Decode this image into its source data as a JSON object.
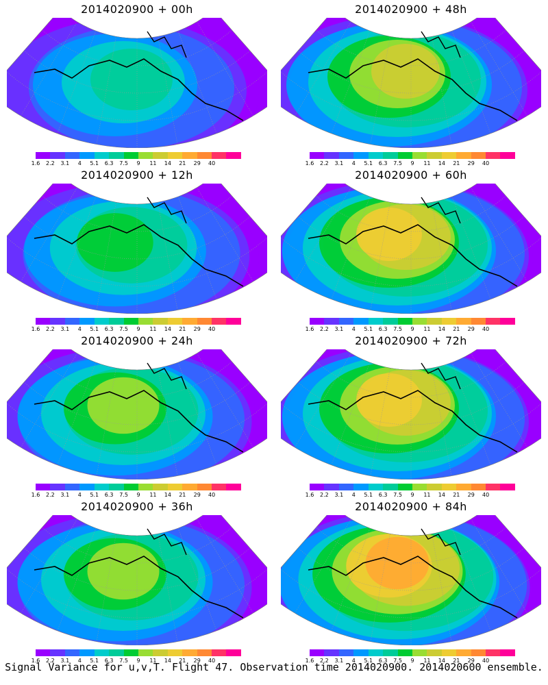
{
  "panels": [
    {
      "title": "2014020900 + 00h",
      "intensity": 0.15
    },
    {
      "title": "2014020900 + 48h",
      "intensity": 0.55
    },
    {
      "title": "2014020900 + 12h",
      "intensity": 0.3
    },
    {
      "title": "2014020900 + 60h",
      "intensity": 0.65
    },
    {
      "title": "2014020900 + 24h",
      "intensity": 0.38
    },
    {
      "title": "2014020900 + 72h",
      "intensity": 0.75
    },
    {
      "title": "2014020900 + 36h",
      "intensity": 0.45
    },
    {
      "title": "2014020900 + 84h",
      "intensity": 0.85
    }
  ],
  "colorbar": {
    "colors": [
      "#9900ff",
      "#6633ff",
      "#3366ff",
      "#0099ff",
      "#00cccc",
      "#00cc99",
      "#00cc33",
      "#99dd33",
      "#cccc33",
      "#eecc33",
      "#ffaa33",
      "#ff8833",
      "#ff3366",
      "#ff0099"
    ],
    "labels": [
      "1.6",
      "2.2",
      "3.1",
      "4",
      "5.1",
      "6.3",
      "7.5",
      "9",
      "11",
      "14",
      "21",
      "29",
      "40"
    ]
  },
  "footer": "Signal Variance for u,v,T. Flight 47. Observation time 2014020900. 2014020600 ensemble."
}
